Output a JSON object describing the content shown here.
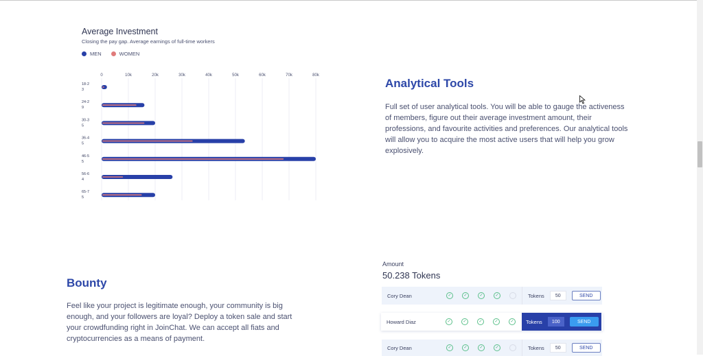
{
  "chart": {
    "title": "Average Investment",
    "subtitle": "Closing the pay gap. Average earnings of full-time workers",
    "legend": [
      {
        "label": "MEN",
        "color": "#2840a8"
      },
      {
        "label": "WOMEN",
        "color": "#e07b7b"
      }
    ]
  },
  "chart_data": {
    "type": "bar",
    "orientation": "horizontal",
    "title": "Average Investment",
    "subtitle": "Closing the pay gap. Average earnings of full-time workers",
    "categories": [
      "18-23",
      "24-29",
      "30-35",
      "36-45",
      "46-55",
      "56-64",
      "65-75"
    ],
    "category_label_lines": [
      [
        "18-2",
        "3"
      ],
      [
        "24-2",
        "9"
      ],
      [
        "30-3",
        "5"
      ],
      [
        "36-4",
        "5"
      ],
      [
        "46-5",
        "5"
      ],
      [
        "56-6",
        "4"
      ],
      [
        "65-7",
        "5"
      ]
    ],
    "x_ticks": [
      "0",
      "10k",
      "20k",
      "30k",
      "40k",
      "50k",
      "60k",
      "70k",
      "80k"
    ],
    "xlim": [
      0,
      80000
    ],
    "series": [
      {
        "name": "MEN",
        "color": "#2840a8",
        "values": [
          2000,
          16000,
          20000,
          53500,
          80000,
          26500,
          20000
        ]
      },
      {
        "name": "WOMEN",
        "color": "#e07b7b",
        "values": [
          1000,
          13000,
          16000,
          34000,
          68000,
          8000,
          15000
        ]
      }
    ],
    "grid": true,
    "legend_position": "top-left"
  },
  "analytical": {
    "title": "Analytical Tools",
    "body": "Full set of user analytical tools. You will be able to gauge the activeness of members, figure out their average investment amount, their professions, and favourite activities and preferences. Our analytical tools will allow you to acquire the most active users that will help you grow explosively."
  },
  "bounty": {
    "title": "Bounty",
    "body": "Feel like your project is legitimate enough, your community is big enough, and your followers are loyal? Deploy a token sale and start your crowdfunding right in JoinChat. We can accept all fiats and cryptocurrencies as a means of payment."
  },
  "amount": {
    "label": "Amount",
    "value": "50.238 Tokens",
    "rows": [
      {
        "name": "Cory Dean",
        "checks": [
          true,
          true,
          true,
          true,
          false
        ],
        "tokens_label": "Tokens",
        "qty": "50",
        "send": "SEND"
      },
      {
        "name": "Howard Diaz",
        "checks": [
          true,
          true,
          true,
          true,
          true
        ],
        "tokens_label": "Tokens",
        "qty": "100",
        "send": "SEND"
      },
      {
        "name": "Cory Dean",
        "checks": [
          true,
          true,
          true,
          true,
          false
        ],
        "tokens_label": "Tokens",
        "qty": "50",
        "send": "SEND"
      }
    ]
  },
  "colors": {
    "accent": "#2d47a8",
    "active_row": "#2840a8",
    "send_active": "#3a9cf0"
  }
}
